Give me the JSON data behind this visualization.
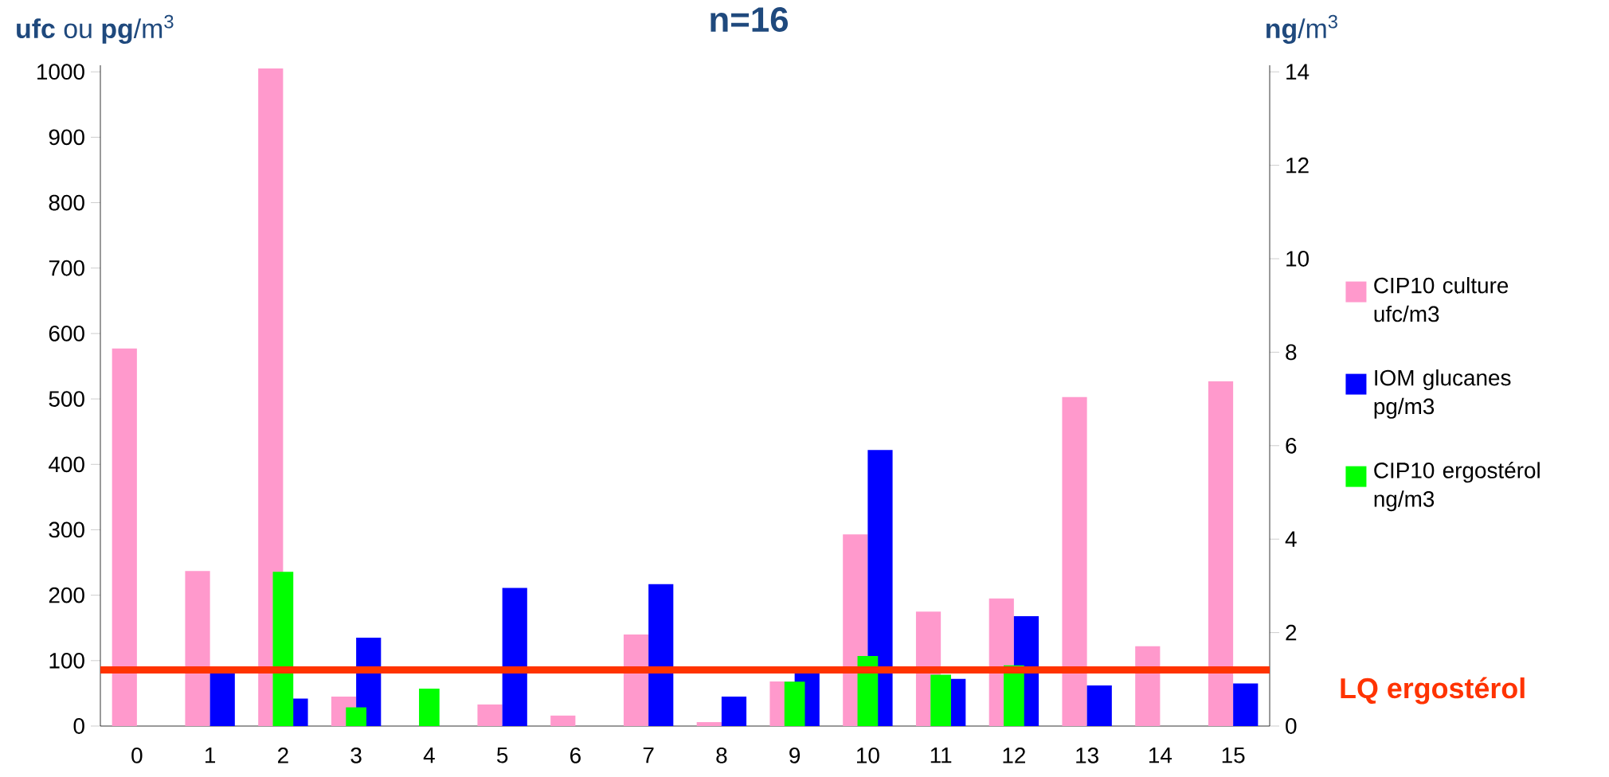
{
  "chart_data": {
    "type": "bar",
    "title": "n=16",
    "ylabel": "**ufc** ou **pg**/m$^{3}$",
    "y2label": "**ng**/m$^{3}$",
    "categories": [
      "0",
      "1",
      "2",
      "3",
      "4",
      "5",
      "6",
      "7",
      "8",
      "9",
      "10",
      "11",
      "12",
      "13",
      "14",
      "15"
    ],
    "series": [
      {
        "name": "CIP10 culture ufc/m3",
        "color": "#ff99cc",
        "values": [
          577,
          237,
          1005,
          45,
          null,
          33,
          16,
          140,
          6,
          68,
          293,
          175,
          195,
          503,
          122,
          527
        ]
      },
      {
        "name": "IOM glucanes pg/m3",
        "color": "#0000ff",
        "values": [
          null,
          82,
          42,
          135,
          null,
          211,
          null,
          217,
          45,
          82,
          422,
          72,
          168,
          62,
          null,
          65
        ]
      },
      {
        "name": "CIP10 ergostérol ng/m3",
        "color": "#00ff00",
        "axis": "y2",
        "values": [
          null,
          null,
          3.3,
          0.4,
          0.8,
          null,
          null,
          null,
          null,
          0.95,
          1.5,
          1.1,
          1.3,
          null,
          null,
          null
        ]
      }
    ],
    "ylim": [
      0,
      1010
    ],
    "yticks": [
      0,
      100,
      200,
      300,
      400,
      500,
      600,
      700,
      800,
      900,
      1000
    ],
    "y2lim": [
      0,
      14.14
    ],
    "y2ticks": [
      0,
      2,
      4,
      6,
      8,
      10,
      12,
      14
    ],
    "ref_lines": [
      {
        "axis": "y2",
        "value": 1.2,
        "label": "LQ ergostérol",
        "color": "#ff3300"
      }
    ],
    "legend": "right",
    "grid": false
  }
}
